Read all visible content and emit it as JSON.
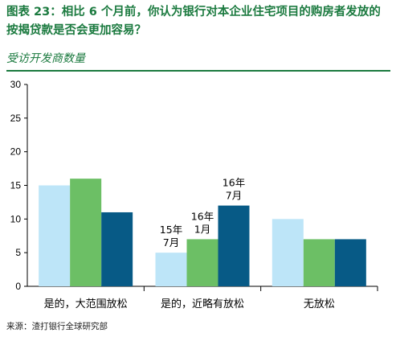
{
  "header": {
    "title": "图表 23：相比 6 个月前，你认为银行对本企业住宅项目的购房者发放的按揭贷款是否会更加容易？",
    "subtitle": "受访开发商数量"
  },
  "footer": {
    "source": "来源：渣打银行全球研究部"
  },
  "colors": {
    "series1": "#bde5f8",
    "series2": "#6cbf65",
    "series3": "#075a86",
    "brand": "#1b7a3f"
  },
  "chart_data": {
    "type": "bar",
    "categories": [
      "是的，大范围放松",
      "是的，近略有放松",
      "无放松"
    ],
    "series": [
      {
        "values": [
          15,
          5,
          10
        ]
      },
      {
        "values": [
          16,
          7,
          7
        ]
      },
      {
        "values": [
          11,
          12,
          7
        ]
      }
    ],
    "annotations": [
      {
        "category_index": 1,
        "series_index": 0,
        "lines": [
          "15年",
          "7月"
        ]
      },
      {
        "category_index": 1,
        "series_index": 1,
        "lines": [
          "16年",
          "1月"
        ]
      },
      {
        "category_index": 1,
        "series_index": 2,
        "lines": [
          "16年",
          "7月"
        ]
      }
    ],
    "yticks": [
      0,
      5,
      10,
      15,
      20,
      25,
      30
    ],
    "ylim": [
      0,
      30
    ],
    "grid": false,
    "legend": "none"
  }
}
